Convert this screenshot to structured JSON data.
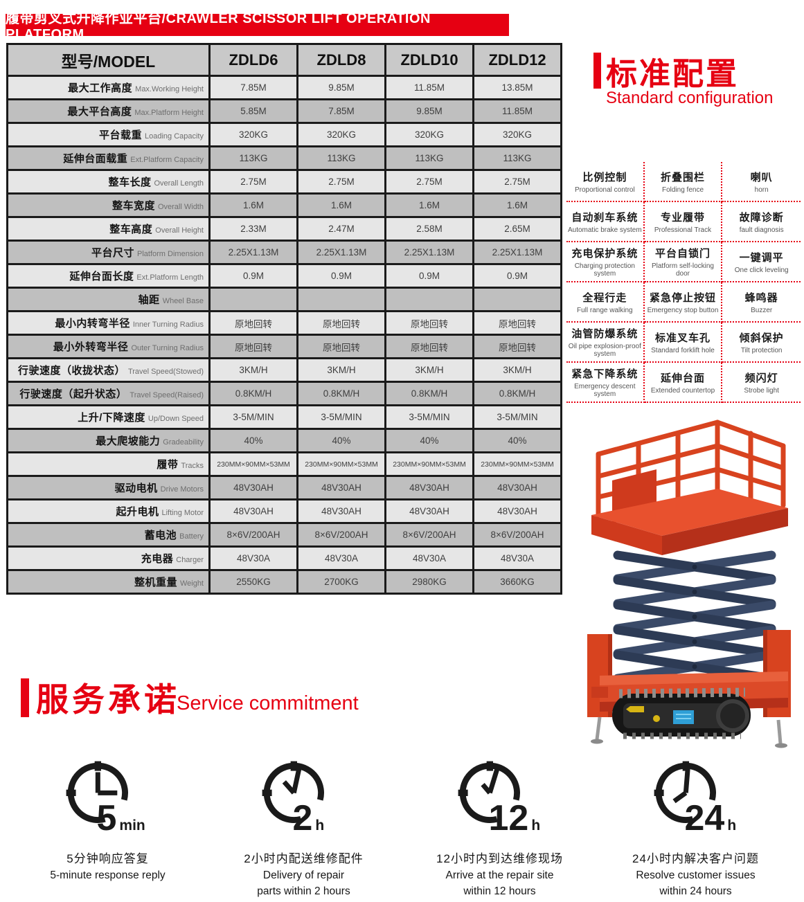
{
  "banner": {
    "title": "履带剪叉式升降作业平台/CRAWLER SCISSOR LIFT OPERATION PLATFORM"
  },
  "spec_table": {
    "header": {
      "model_label": "型号/MODEL",
      "models": [
        "ZDLD6",
        "ZDLD8",
        "ZDLD10",
        "ZDLD12"
      ]
    },
    "rows": [
      {
        "cn": "最大工作高度",
        "en": "Max.Working Height",
        "values": [
          "7.85M",
          "9.85M",
          "11.85M",
          "13.85M"
        ]
      },
      {
        "cn": "最大平台高度",
        "en": "Max.Platform Height",
        "values": [
          "5.85M",
          "7.85M",
          "9.85M",
          "11.85M"
        ]
      },
      {
        "cn": "平台载重",
        "en": "Loading Capacity",
        "values": [
          "320KG",
          "320KG",
          "320KG",
          "320KG"
        ]
      },
      {
        "cn": "延伸台面载重",
        "en": "Ext.Platform Capacity",
        "values": [
          "113KG",
          "113KG",
          "113KG",
          "113KG"
        ]
      },
      {
        "cn": "整车长度",
        "en": "Overall Length",
        "values": [
          "2.75M",
          "2.75M",
          "2.75M",
          "2.75M"
        ]
      },
      {
        "cn": "整车宽度",
        "en": "Overall Width",
        "values": [
          "1.6M",
          "1.6M",
          "1.6M",
          "1.6M"
        ]
      },
      {
        "cn": "整车高度",
        "en": "Overall Height",
        "values": [
          "2.33M",
          "2.47M",
          "2.58M",
          "2.65M"
        ]
      },
      {
        "cn": "平台尺寸",
        "en": "Platform Dimension",
        "values": [
          "2.25X1.13M",
          "2.25X1.13M",
          "2.25X1.13M",
          "2.25X1.13M"
        ]
      },
      {
        "cn": "延伸台面长度",
        "en": "Ext.Platform Length",
        "values": [
          "0.9M",
          "0.9M",
          "0.9M",
          "0.9M"
        ]
      },
      {
        "cn": "轴距",
        "en": "Wheel Base",
        "values": [
          "",
          "",
          "",
          ""
        ]
      },
      {
        "cn": "最小内转弯半径",
        "en": "Inner Turning Radius",
        "values": [
          "原地回转",
          "原地回转",
          "原地回转",
          "原地回转"
        ]
      },
      {
        "cn": "最小外转弯半径",
        "en": "Outer Turning Radius",
        "values": [
          "原地回转",
          "原地回转",
          "原地回转",
          "原地回转"
        ]
      },
      {
        "cn": "行驶速度（收拢状态）",
        "en": "Travel Speed(Stowed)",
        "values": [
          "3KM/H",
          "3KM/H",
          "3KM/H",
          "3KM/H"
        ]
      },
      {
        "cn": "行驶速度（起升状态）",
        "en": "Travel Speed(Raised)",
        "values": [
          "0.8KM/H",
          "0.8KM/H",
          "0.8KM/H",
          "0.8KM/H"
        ]
      },
      {
        "cn": "上升/下降速度",
        "en": "Up/Down Speed",
        "values": [
          "3-5M/MIN",
          "3-5M/MIN",
          "3-5M/MIN",
          "3-5M/MIN"
        ]
      },
      {
        "cn": "最大爬坡能力",
        "en": "Gradeability",
        "values": [
          "40%",
          "40%",
          "40%",
          "40%"
        ]
      },
      {
        "cn": "履带",
        "en": "Tracks",
        "values": [
          "230MM×90MM×53MM",
          "230MM×90MM×53MM",
          "230MM×90MM×53MM",
          "230MM×90MM×53MM"
        ]
      },
      {
        "cn": "驱动电机",
        "en": "Drive Motors",
        "values": [
          "48V30AH",
          "48V30AH",
          "48V30AH",
          "48V30AH"
        ]
      },
      {
        "cn": "起升电机",
        "en": "Lifting Motor",
        "values": [
          "48V30AH",
          "48V30AH",
          "48V30AH",
          "48V30AH"
        ]
      },
      {
        "cn": "蓄电池",
        "en": "Battery",
        "values": [
          "8×6V/200AH",
          "8×6V/200AH",
          "8×6V/200AH",
          "8×6V/200AH"
        ]
      },
      {
        "cn": "充电器",
        "en": "Charger",
        "values": [
          "48V30A",
          "48V30A",
          "48V30A",
          "48V30A"
        ]
      },
      {
        "cn": "整机重量",
        "en": "Weight",
        "values": [
          "2550KG",
          "2700KG",
          "2980KG",
          "3660KG"
        ]
      }
    ]
  },
  "standard_config": {
    "title_cn": "标准配置",
    "title_en": "Standard configuration",
    "items": [
      {
        "cn": "比例控制",
        "en": "Proportional control"
      },
      {
        "cn": "折叠围栏",
        "en": "Folding fence"
      },
      {
        "cn": "喇叭",
        "en": "horn"
      },
      {
        "cn": "自动刹车系统",
        "en": "Automatic brake system"
      },
      {
        "cn": "专业履带",
        "en": "Professional Track"
      },
      {
        "cn": "故障诊断",
        "en": "fault diagnosis"
      },
      {
        "cn": "充电保护系统",
        "en": "Charging protection system"
      },
      {
        "cn": "平台自锁门",
        "en": "Platform self-locking door"
      },
      {
        "cn": "一键调平",
        "en": "One click leveling"
      },
      {
        "cn": "全程行走",
        "en": "Full range walking"
      },
      {
        "cn": "紧急停止按钮",
        "en": "Emergency stop button"
      },
      {
        "cn": "蜂鸣器",
        "en": "Buzzer"
      },
      {
        "cn": "油管防爆系统",
        "en": "Oil pipe explosion-proof system"
      },
      {
        "cn": "标准叉车孔",
        "en": "Standard forklift hole"
      },
      {
        "cn": "倾斜保护",
        "en": "Tilt protection"
      },
      {
        "cn": "紧急下降系统",
        "en": "Emergency descent system"
      },
      {
        "cn": "延伸台面",
        "en": "Extended countertop"
      },
      {
        "cn": "频闪灯",
        "en": "Strobe light"
      }
    ]
  },
  "service": {
    "title_cn": "服务承诺",
    "title_en": "Service commitment",
    "items": [
      {
        "icon": "clock-icon",
        "number": "5",
        "unit": "min",
        "caption_cn": "5分钟响应答复",
        "caption_en_lines": [
          "5-minute response reply"
        ]
      },
      {
        "icon": "clock-icon",
        "number": "2",
        "unit": "h",
        "caption_cn": "2小时内配送维修配件",
        "caption_en_lines": [
          "Delivery of repair",
          "parts within 2 hours"
        ]
      },
      {
        "icon": "clock-icon",
        "number": "12",
        "unit": "h",
        "caption_cn": "12小时内到达维修现场",
        "caption_en_lines": [
          "Arrive at the repair site",
          "within 12 hours"
        ]
      },
      {
        "icon": "clock-icon",
        "number": "24",
        "unit": "h",
        "caption_cn": "24小时内解决客户问题",
        "caption_en_lines": [
          "Resolve customer issues",
          "within 24 hours"
        ]
      }
    ]
  },
  "product_image": {
    "alt": "crawler-scissor-lift"
  },
  "colors": {
    "accent_red": "#e60012",
    "lift_red": "#d8431f",
    "scissor_navy": "#36466b",
    "table_dark_row": "#bfbfbf",
    "table_light_row": "#e6e6e6"
  }
}
